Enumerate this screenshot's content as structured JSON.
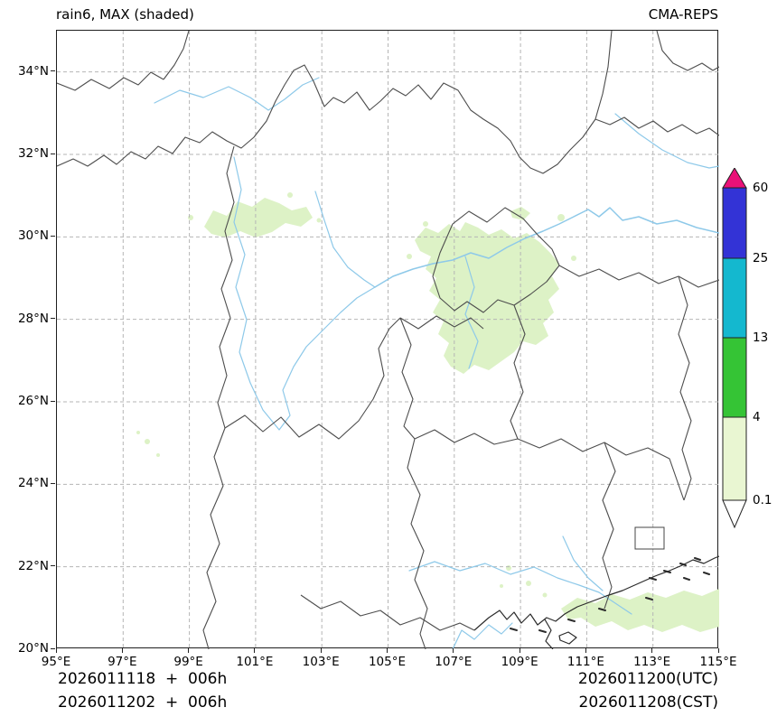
{
  "header": {
    "title": "rain6, MAX (shaded)",
    "model": "CMA-REPS"
  },
  "footer": {
    "init_utc": "2026011118  +  006h",
    "init_cst": "2026011202  +  006h",
    "valid_utc": "2026011200(UTC)",
    "valid_cst": "2026011208(CST)"
  },
  "chart_data": {
    "type": "map",
    "title": "rain6, MAX (shaded)",
    "model": "CMA-REPS",
    "x_range": [
      95,
      115
    ],
    "y_range": [
      20,
      35
    ],
    "x_ticks": [
      {
        "value": 95,
        "label": "95°E"
      },
      {
        "value": 97,
        "label": "97°E"
      },
      {
        "value": 99,
        "label": "99°E"
      },
      {
        "value": 101,
        "label": "101°E"
      },
      {
        "value": 103,
        "label": "103°E"
      },
      {
        "value": 105,
        "label": "105°E"
      },
      {
        "value": 107,
        "label": "107°E"
      },
      {
        "value": 109,
        "label": "109°E"
      },
      {
        "value": 111,
        "label": "111°E"
      },
      {
        "value": 113,
        "label": "113°E"
      },
      {
        "value": 115,
        "label": "115°E"
      }
    ],
    "y_ticks": [
      {
        "value": 20,
        "label": "20°N"
      },
      {
        "value": 22,
        "label": "22°N"
      },
      {
        "value": 24,
        "label": "24°N"
      },
      {
        "value": 26,
        "label": "26°N"
      },
      {
        "value": 28,
        "label": "28°N"
      },
      {
        "value": 30,
        "label": "30°N"
      },
      {
        "value": 32,
        "label": "32°N"
      },
      {
        "value": 34,
        "label": "34°N"
      }
    ],
    "grid": {
      "on": true,
      "style": "dashed",
      "color": "#b5b5b5"
    },
    "colorbar": {
      "position": "right",
      "tick_labels": [
        "0.1",
        "4",
        "13",
        "25",
        "60"
      ],
      "segment_colors": [
        "#e9f6d2",
        "#35c435",
        "#14b8cf",
        "#3333d6"
      ],
      "over_color": "#ea1178",
      "under_color": "#ffffff",
      "outline_color": "#222222"
    },
    "shading_color_on_map": "#ddf2c6",
    "shaded_areas": [
      {
        "region": "Sichuan Basin, ~99.5-102.7E / 29.8-31.0N",
        "value_range": "0.1-4"
      },
      {
        "region": "E Sichuan / Chongqing / N Guizhou / W Hunan, ~105.8-110.3E / 26.5-30.3N",
        "value_range": "0.1-4"
      },
      {
        "region": "South China coast, ~110.2-115E / 20.4-21.7N",
        "value_range": "0.1-4"
      },
      {
        "region": "Small specks W Yunnan, ~97.5-98E / 24.7-25.1N",
        "value_range": "0.1-4"
      }
    ]
  }
}
